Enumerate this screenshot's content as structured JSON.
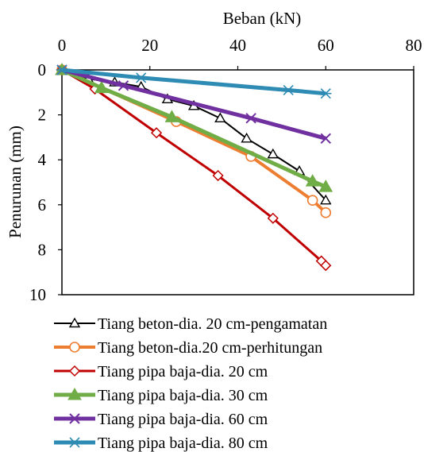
{
  "chart_data": {
    "type": "line",
    "title": "",
    "xlabel": "Beban (kN)",
    "ylabel": "Penurunan (mm)",
    "x_axis_position": "top",
    "y_axis_inverted": true,
    "xlim": [
      0,
      80
    ],
    "ylim": [
      0,
      10
    ],
    "x_ticks": [
      0,
      20,
      40,
      60,
      80
    ],
    "y_ticks": [
      0,
      2,
      4,
      6,
      8,
      10
    ],
    "grid": false,
    "legend_position": "bottom",
    "series": [
      {
        "name": "Tiang beton-dia. 20 cm-pengamatan",
        "color": "#000000",
        "marker": "triangle-open",
        "points": [
          [
            0,
            0
          ],
          [
            6,
            0.4
          ],
          [
            12,
            0.55
          ],
          [
            18,
            0.75
          ],
          [
            24,
            1.3
          ],
          [
            30,
            1.6
          ],
          [
            36,
            2.15
          ],
          [
            42,
            3.05
          ],
          [
            48,
            3.75
          ],
          [
            54,
            4.5
          ],
          [
            60,
            5.8
          ]
        ]
      },
      {
        "name": "Tiang beton-dia.20 cm-perhitungan",
        "color": "#ED7D31",
        "marker": "circle-open",
        "points": [
          [
            0,
            0
          ],
          [
            26,
            2.3
          ],
          [
            43,
            3.85
          ],
          [
            57,
            5.8
          ],
          [
            60,
            6.35
          ]
        ]
      },
      {
        "name": "Tiang pipa baja-dia. 20 cm",
        "color": "#C00000",
        "marker": "diamond-open",
        "points": [
          [
            0,
            0
          ],
          [
            7.5,
            0.85
          ],
          [
            21.5,
            2.8
          ],
          [
            35.5,
            4.7
          ],
          [
            48,
            6.6
          ],
          [
            59,
            8.5
          ],
          [
            60,
            8.7
          ]
        ]
      },
      {
        "name": "Tiang pipa baja-dia. 30 cm",
        "color": "#70AD47",
        "marker": "triangle-filled",
        "points": [
          [
            0,
            0
          ],
          [
            9,
            0.8
          ],
          [
            25,
            2.1
          ],
          [
            57,
            4.95
          ],
          [
            60,
            5.2
          ]
        ]
      },
      {
        "name": "Tiang pipa baja-dia. 60 cm",
        "color": "#7030A0",
        "marker": "x",
        "points": [
          [
            0,
            0
          ],
          [
            14,
            0.7
          ],
          [
            43,
            2.15
          ],
          [
            60,
            3.05
          ]
        ]
      },
      {
        "name": "Tiang pipa baja-dia. 80 cm",
        "color": "#2E8BB3",
        "marker": "asterisk",
        "points": [
          [
            0,
            0
          ],
          [
            18,
            0.35
          ],
          [
            51.5,
            0.9
          ],
          [
            60,
            1.05
          ]
        ]
      }
    ]
  }
}
